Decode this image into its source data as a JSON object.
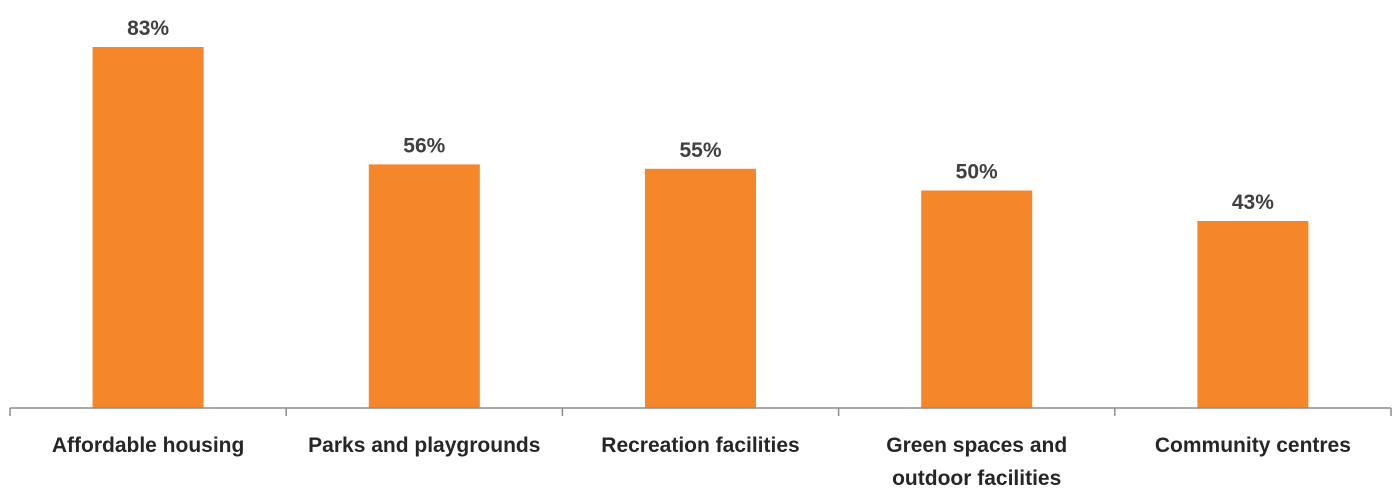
{
  "chart_data": {
    "type": "bar",
    "categories": [
      "Affordable housing",
      "Parks and playgrounds",
      "Recreation facilities",
      "Green spaces and outdoor facilities",
      "Community centres"
    ],
    "category_lines": [
      [
        "Affordable housing"
      ],
      [
        "Parks and playgrounds"
      ],
      [
        "Recreation facilities"
      ],
      [
        "Green spaces and",
        "outdoor facilities"
      ],
      [
        "Community centres"
      ]
    ],
    "values": [
      83,
      56,
      55,
      50,
      43
    ],
    "value_labels": [
      "83%",
      "56%",
      "55%",
      "50%",
      "43%"
    ],
    "ylim": [
      0,
      100
    ],
    "grid": false,
    "legend": "none",
    "bar_color": "#F5862A",
    "axis_color": "#8C8C8C",
    "label_color": "#404040",
    "tick_color": "#262626"
  }
}
